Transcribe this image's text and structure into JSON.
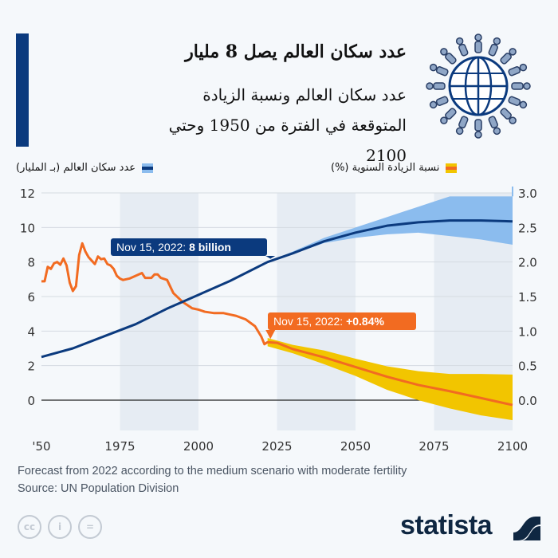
{
  "header": {
    "title": "عدد سكان العالم يصل 8 مليار",
    "subtitle": "عدد سكان العالم ونسبة الزيادة المتوقعة في الفترة من 1950 وحتي 2100"
  },
  "legend": {
    "population": "عدد سكان العالم (بـ المليار)",
    "growth": "نسبة الزيادة السنوية (%)"
  },
  "footer": {
    "note": "Forecast from 2022 according to the medium scenario with moderate fertility",
    "source": "Source: UN Population Division",
    "brand": "statista",
    "license_icons": [
      "cc-icon",
      "attribution-icon",
      "no-derivatives-icon"
    ]
  },
  "colors": {
    "accent": "#0b3a7e",
    "population": "#0b3a7e",
    "population_band": "#8bbcee",
    "growth": "#f26b21",
    "growth_band": "#f2c500",
    "shade": "#e6ecf3"
  },
  "chart_data": {
    "type": "line",
    "x_ticks": [
      "'50",
      "1975",
      "2000",
      "2025",
      "2050",
      "2075",
      "2100"
    ],
    "x_tick_values": [
      1950,
      1975,
      2000,
      2025,
      2050,
      2075,
      2100
    ],
    "xlim": [
      1950,
      2100
    ],
    "shaded_periods": [
      [
        1975,
        2000
      ],
      [
        2025,
        2050
      ],
      [
        2075,
        2100
      ]
    ],
    "y_left": {
      "ticks": [
        "0",
        "2",
        "4",
        "6",
        "8",
        "10",
        "12"
      ],
      "lim": [
        0,
        12
      ]
    },
    "y_right": {
      "ticks": [
        "0.0",
        "0.5",
        "1.0",
        "1.5",
        "2.0",
        "2.5",
        "3.0"
      ],
      "lim": [
        0,
        3
      ]
    },
    "grid": true,
    "annotations": [
      {
        "series": "population",
        "x": 2022.9,
        "prefix": "Nov 15, 2022: ",
        "value": "8 billion"
      },
      {
        "series": "growth",
        "x": 2022.9,
        "prefix": "Nov 15, 2022: ",
        "value": "+0.84%"
      }
    ],
    "series": [
      {
        "key": "population",
        "axis": "left",
        "x": [
          1950,
          1960,
          1970,
          1980,
          1990,
          2000,
          2010,
          2022,
          2030,
          2040,
          2050,
          2060,
          2070,
          2080,
          2090,
          2100
        ],
        "y": [
          2.5,
          3.0,
          3.7,
          4.4,
          5.3,
          6.1,
          6.9,
          8.0,
          8.5,
          9.2,
          9.7,
          10.1,
          10.3,
          10.4,
          10.4,
          10.35
        ],
        "band": {
          "x": [
            2022,
            2030,
            2040,
            2050,
            2060,
            2070,
            2080,
            2090,
            2100
          ],
          "upper": [
            8.0,
            8.6,
            9.4,
            10.0,
            10.6,
            11.2,
            11.8,
            11.8,
            11.8
          ],
          "lower": [
            8.0,
            8.45,
            9.1,
            9.4,
            9.6,
            9.7,
            9.5,
            9.3,
            9.0
          ]
        }
      },
      {
        "key": "growth",
        "axis": "right",
        "x": [
          1950,
          1951,
          1952,
          1953,
          1954,
          1955,
          1956,
          1957,
          1958,
          1959,
          1960,
          1961,
          1962,
          1963,
          1964,
          1965,
          1966,
          1967,
          1968,
          1969,
          1970,
          1971,
          1972,
          1973,
          1974,
          1975,
          1976,
          1978,
          1980,
          1982,
          1983,
          1985,
          1986,
          1987,
          1988,
          1990,
          1992,
          1995,
          1998,
          2000,
          2002,
          2005,
          2008,
          2010,
          2012,
          2015,
          2018,
          2020,
          2021,
          2022,
          2025,
          2030,
          2040,
          2050,
          2060,
          2070,
          2080,
          2090,
          2100
        ],
        "y": [
          1.72,
          1.72,
          1.93,
          1.9,
          1.98,
          2.0,
          1.96,
          2.05,
          1.95,
          1.7,
          1.58,
          1.65,
          2.1,
          2.27,
          2.15,
          2.07,
          2.02,
          1.97,
          2.08,
          2.04,
          2.05,
          1.97,
          1.95,
          1.9,
          1.8,
          1.76,
          1.74,
          1.76,
          1.8,
          1.84,
          1.77,
          1.77,
          1.82,
          1.82,
          1.77,
          1.74,
          1.55,
          1.42,
          1.33,
          1.31,
          1.28,
          1.26,
          1.26,
          1.24,
          1.22,
          1.17,
          1.07,
          0.92,
          0.81,
          0.84,
          0.83,
          0.74,
          0.62,
          0.48,
          0.34,
          0.22,
          0.13,
          0.03,
          -0.07
        ],
        "band": {
          "x": [
            2022,
            2030,
            2040,
            2050,
            2060,
            2070,
            2080,
            2090,
            2100
          ],
          "upper": [
            0.9,
            0.8,
            0.72,
            0.6,
            0.49,
            0.42,
            0.38,
            0.38,
            0.37
          ],
          "lower": [
            0.78,
            0.68,
            0.52,
            0.35,
            0.15,
            0.0,
            -0.12,
            -0.22,
            -0.29
          ]
        }
      }
    ]
  }
}
